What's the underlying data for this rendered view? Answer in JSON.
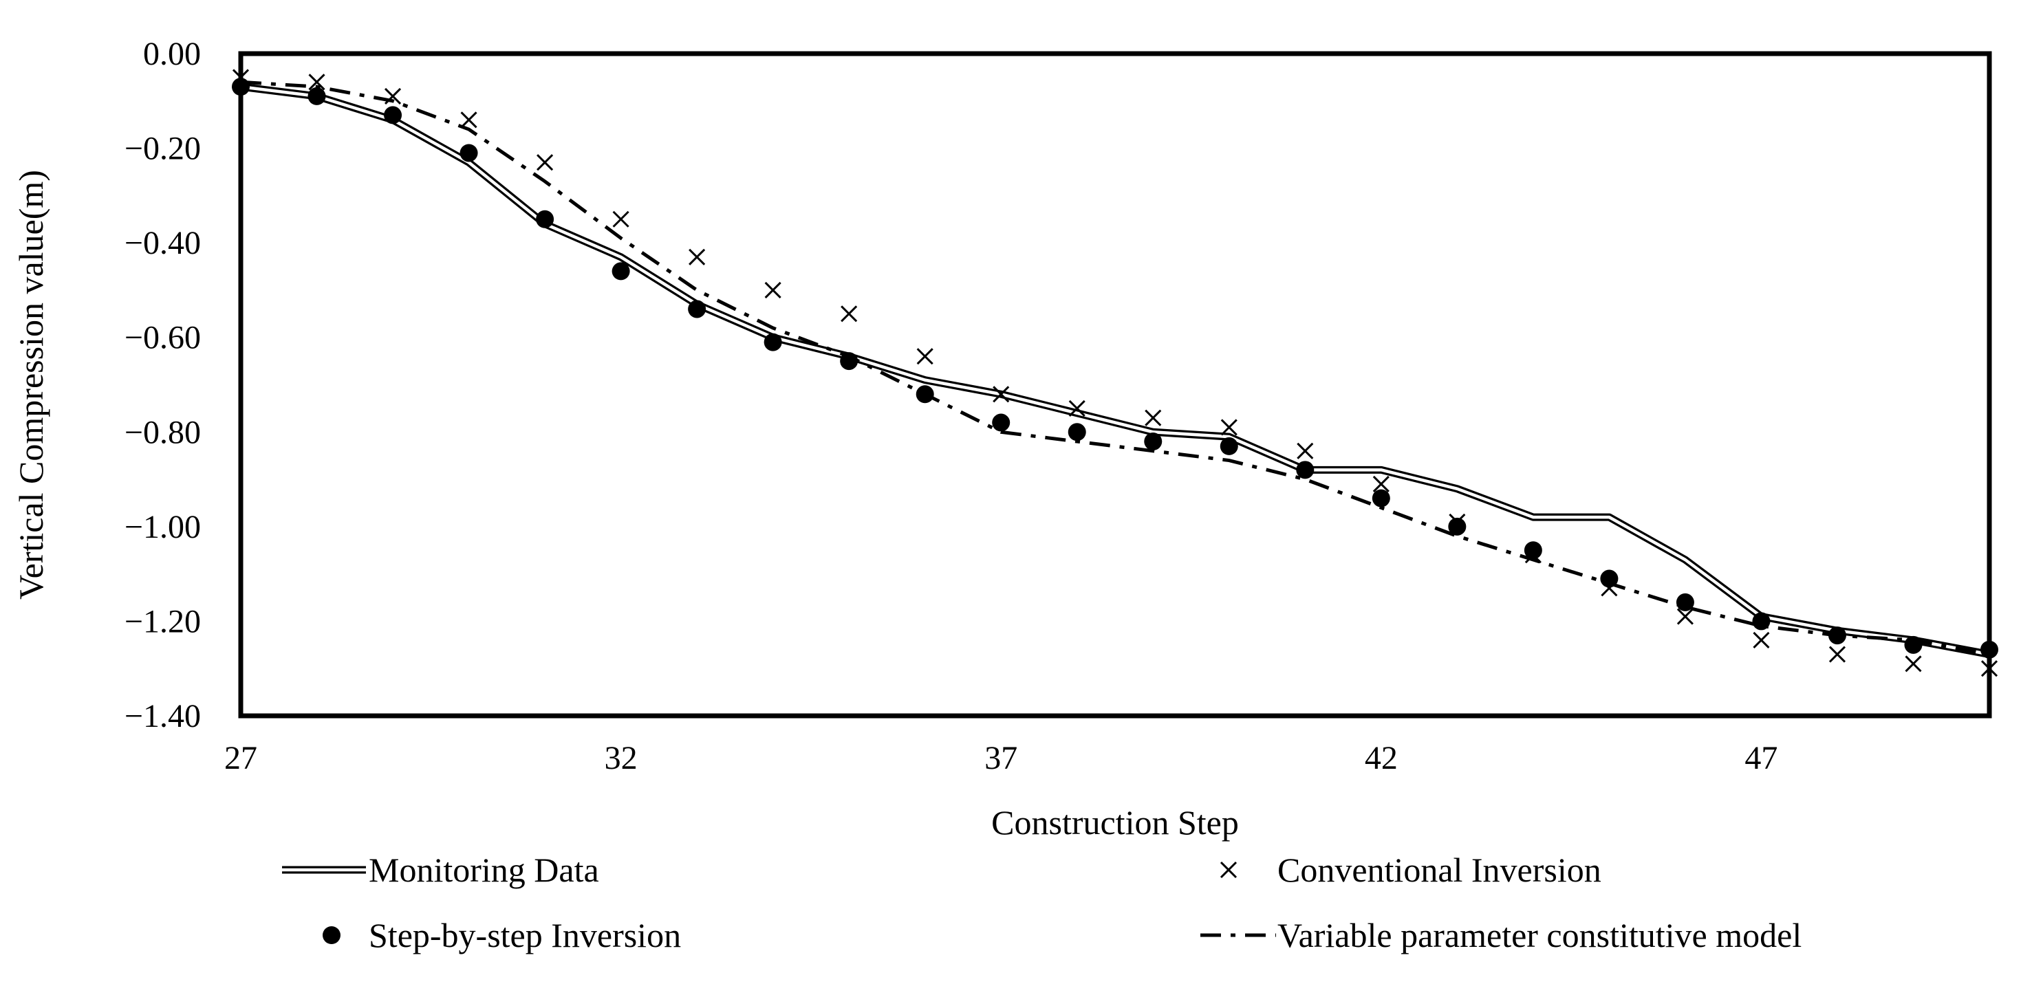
{
  "chart_data": {
    "type": "line",
    "title": "",
    "xlabel": "Construction  Step",
    "ylabel": "Vertical  Compression  value(m)",
    "xlim": [
      27,
      50
    ],
    "ylim": [
      -1.4,
      0
    ],
    "x_ticks": [
      "27",
      "32",
      "37",
      "42",
      "47"
    ],
    "y_ticks": [
      "0.00",
      "−0.20",
      "−0.40",
      "−0.60",
      "−0.80",
      "−1.00",
      "−1.20",
      "−1.40"
    ],
    "grid": false,
    "legend_position": "bottom",
    "series": [
      {
        "name": "Monitoring Data",
        "style": "double-line",
        "x": [
          27,
          28,
          29,
          30,
          31,
          32,
          33,
          34,
          35,
          36,
          37,
          38,
          39,
          40,
          41,
          42,
          43,
          44,
          45,
          46,
          47,
          48,
          49,
          50
        ],
        "values": [
          -0.07,
          -0.09,
          -0.14,
          -0.23,
          -0.36,
          -0.43,
          -0.53,
          -0.6,
          -0.64,
          -0.69,
          -0.72,
          -0.76,
          -0.8,
          -0.81,
          -0.88,
          -0.88,
          -0.92,
          -0.98,
          -0.98,
          -1.07,
          -1.19,
          -1.22,
          -1.24,
          -1.27
        ]
      },
      {
        "name": "Conventional Inversion",
        "style": "x-marker",
        "x": [
          27,
          28,
          29,
          30,
          31,
          32,
          33,
          34,
          35,
          36,
          37,
          38,
          39,
          40,
          41,
          42,
          43,
          44,
          45,
          46,
          47,
          48,
          49,
          50
        ],
        "values": [
          -0.05,
          -0.06,
          -0.09,
          -0.14,
          -0.23,
          -0.35,
          -0.43,
          -0.5,
          -0.55,
          -0.64,
          -0.72,
          -0.75,
          -0.77,
          -0.79,
          -0.84,
          -0.91,
          -0.99,
          -1.06,
          -1.13,
          -1.19,
          -1.24,
          -1.27,
          -1.29,
          -1.3
        ]
      },
      {
        "name": "Step-by-step Inversion",
        "style": "dot-marker",
        "x": [
          27,
          28,
          29,
          30,
          31,
          32,
          33,
          34,
          35,
          36,
          37,
          38,
          39,
          40,
          41,
          42,
          43,
          44,
          45,
          46,
          47,
          48,
          49,
          50
        ],
        "values": [
          -0.07,
          -0.09,
          -0.13,
          -0.21,
          -0.35,
          -0.46,
          -0.54,
          -0.61,
          -0.65,
          -0.72,
          -0.78,
          -0.8,
          -0.82,
          -0.83,
          -0.88,
          -0.94,
          -1.0,
          -1.05,
          -1.11,
          -1.16,
          -1.2,
          -1.23,
          -1.25,
          -1.26
        ]
      },
      {
        "name": "Variable parameter constitutive model",
        "style": "dash-dot",
        "x": [
          27,
          28,
          29,
          30,
          31,
          32,
          33,
          34,
          35,
          36,
          37,
          38,
          39,
          40,
          41,
          42,
          43,
          44,
          45,
          46,
          47,
          48,
          49,
          50
        ],
        "values": [
          -0.06,
          -0.07,
          -0.1,
          -0.16,
          -0.27,
          -0.39,
          -0.5,
          -0.58,
          -0.64,
          -0.72,
          -0.8,
          -0.82,
          -0.84,
          -0.86,
          -0.9,
          -0.96,
          -1.02,
          -1.07,
          -1.12,
          -1.17,
          -1.21,
          -1.23,
          -1.24,
          -1.27
        ]
      }
    ]
  }
}
